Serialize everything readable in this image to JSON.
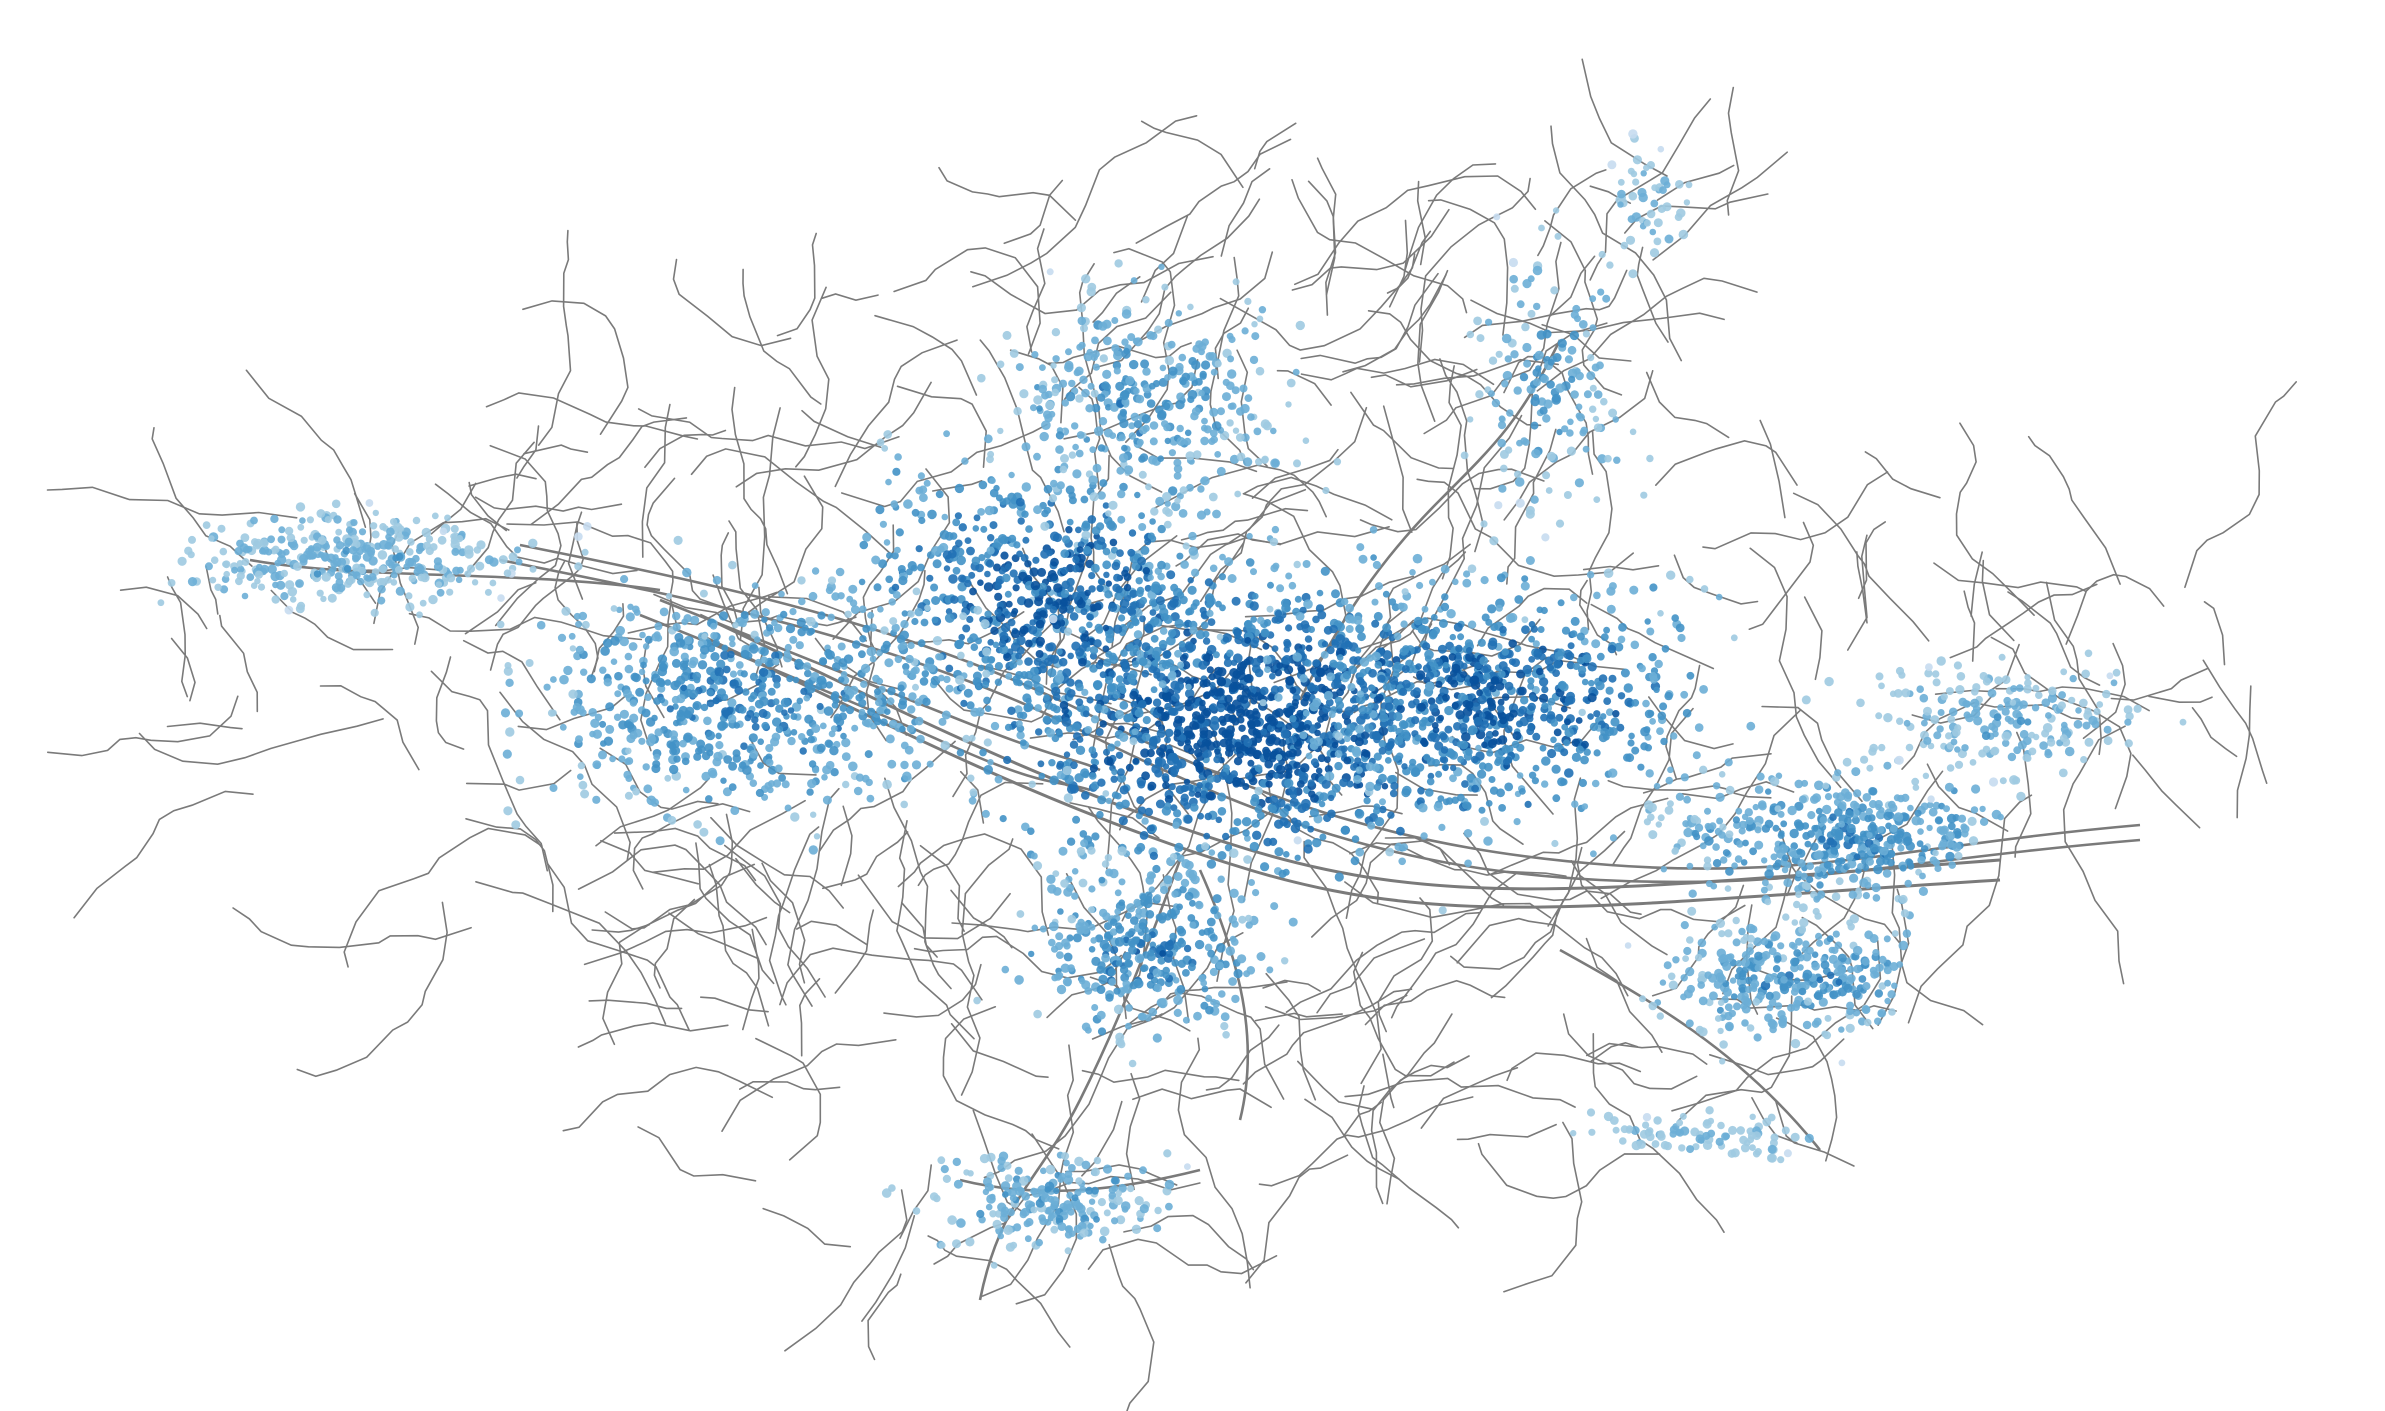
{
  "map": {
    "type": "street-network-node-density",
    "background_color": "#ffffff",
    "edge_color": "#7a7a7a",
    "node_color_scale": [
      "#c6dbef",
      "#9ecae1",
      "#6baed6",
      "#4292c6",
      "#2171b5",
      "#08519c"
    ],
    "legend": null,
    "title": null
  }
}
